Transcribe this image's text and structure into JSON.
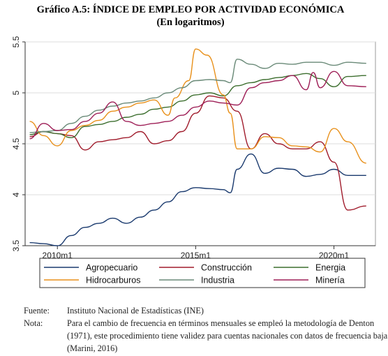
{
  "title": "Gráfico A.5: ÍNDICE DE EMPLEO POR ACTIVIDAD ECONÓMICA",
  "subtitle": "(En logaritmos)",
  "chart_data": {
    "type": "line",
    "ylim": [
      3.5,
      5.5
    ],
    "yticks": [
      "3.5",
      "4",
      "4.5",
      "5",
      "5.5"
    ],
    "xticks": [
      "2010m1",
      "2015m1",
      "2020m1"
    ],
    "grid": true,
    "legend_position": "bottom",
    "series": [
      {
        "name": "Agropecuario",
        "color": "#1a3a6e",
        "x": [
          "2009m1",
          "2009m7",
          "2010m1",
          "2010m7",
          "2011m1",
          "2011m7",
          "2012m1",
          "2012m7",
          "2013m1",
          "2013m7",
          "2014m1",
          "2014m7",
          "2015m1",
          "2015m7",
          "2016m1",
          "2016m4",
          "2016m7",
          "2017m1",
          "2017m7",
          "2018m1",
          "2018m7",
          "2019m1",
          "2019m7",
          "2020m1",
          "2020m7",
          "2021m3"
        ],
        "y": [
          3.53,
          3.52,
          3.5,
          3.6,
          3.68,
          3.72,
          3.77,
          3.72,
          3.78,
          3.85,
          3.93,
          4.03,
          4.07,
          4.06,
          4.05,
          4.02,
          4.25,
          4.4,
          4.21,
          4.26,
          4.25,
          4.18,
          4.2,
          4.25,
          4.19,
          4.19
        ]
      },
      {
        "name": "Construcción",
        "color": "#a01c2c",
        "x": [
          "2009m1",
          "2009m7",
          "2010m1",
          "2010m7",
          "2011m1",
          "2011m7",
          "2012m1",
          "2012m7",
          "2013m1",
          "2013m7",
          "2014m1",
          "2014m7",
          "2015m1",
          "2015m7",
          "2016m1",
          "2016m7",
          "2017m1",
          "2017m7",
          "2018m1",
          "2018m7",
          "2019m1",
          "2019m7",
          "2020m1",
          "2020m7",
          "2021m3"
        ],
        "y": [
          4.57,
          4.62,
          4.6,
          4.58,
          4.44,
          4.52,
          4.54,
          4.56,
          4.62,
          4.5,
          4.53,
          4.62,
          4.8,
          4.97,
          4.95,
          4.82,
          4.45,
          4.6,
          4.5,
          4.45,
          4.45,
          4.52,
          4.32,
          3.85,
          3.89
        ]
      },
      {
        "name": "Energia",
        "color": "#3c6e2e",
        "x": [
          "2009m1",
          "2009m7",
          "2010m1",
          "2010m7",
          "2011m1",
          "2011m7",
          "2012m1",
          "2012m7",
          "2013m1",
          "2013m7",
          "2014m1",
          "2014m7",
          "2015m1",
          "2015m7",
          "2016m1",
          "2016m7",
          "2017m1",
          "2017m7",
          "2018m1",
          "2018m7",
          "2019m1",
          "2019m7",
          "2020m1",
          "2020m7",
          "2021m3"
        ],
        "y": [
          4.59,
          4.62,
          4.6,
          4.56,
          4.67,
          4.69,
          4.72,
          4.76,
          4.79,
          4.84,
          4.86,
          4.92,
          4.98,
          5.0,
          4.97,
          5.07,
          5.1,
          5.13,
          5.15,
          5.17,
          5.19,
          5.14,
          5.06,
          5.16,
          5.17
        ]
      },
      {
        "name": "Hidrocarburos",
        "color": "#e8901a",
        "x": [
          "2009m1",
          "2009m7",
          "2010m1",
          "2010m7",
          "2011m1",
          "2011m7",
          "2012m1",
          "2012m7",
          "2013m1",
          "2013m7",
          "2014m1",
          "2014m4",
          "2014m10",
          "2015m1",
          "2015m6",
          "2016m1",
          "2016m4",
          "2016m7",
          "2017m1",
          "2017m7",
          "2018m1",
          "2018m7",
          "2019m1",
          "2019m7",
          "2020m1",
          "2020m7",
          "2021m3"
        ],
        "y": [
          4.72,
          4.58,
          4.48,
          4.63,
          4.68,
          4.73,
          4.82,
          4.86,
          4.9,
          4.93,
          4.78,
          4.95,
          5.12,
          5.43,
          5.37,
          4.98,
          4.8,
          4.45,
          4.45,
          4.57,
          4.56,
          4.48,
          4.47,
          4.42,
          4.65,
          4.52,
          4.31
        ]
      },
      {
        "name": "Industria",
        "color": "#6a8a78",
        "x": [
          "2009m1",
          "2009m7",
          "2010m1",
          "2010m7",
          "2011m1",
          "2011m7",
          "2012m1",
          "2012m7",
          "2013m1",
          "2013m7",
          "2014m1",
          "2014m7",
          "2015m1",
          "2015m7",
          "2016m1",
          "2016m4",
          "2016m7",
          "2017m1",
          "2017m7",
          "2018m1",
          "2018m7",
          "2019m1",
          "2019m7",
          "2020m1",
          "2020m7",
          "2021m3"
        ],
        "y": [
          4.61,
          4.62,
          4.63,
          4.7,
          4.77,
          4.83,
          4.87,
          4.9,
          4.92,
          4.95,
          5.0,
          5.05,
          5.12,
          5.13,
          5.12,
          5.1,
          5.33,
          5.28,
          5.24,
          5.29,
          5.28,
          5.3,
          5.3,
          5.27,
          5.3,
          5.29
        ]
      },
      {
        "name": "Minería",
        "color": "#9e1f57",
        "x": [
          "2009m1",
          "2009m7",
          "2010m1",
          "2010m7",
          "2011m1",
          "2011m7",
          "2012m1",
          "2012m7",
          "2013m1",
          "2013m7",
          "2014m1",
          "2014m7",
          "2015m1",
          "2015m7",
          "2016m1",
          "2016m7",
          "2017m1",
          "2017m7",
          "2018m1",
          "2018m7",
          "2019m1",
          "2019m4",
          "2019m7",
          "2020m1",
          "2020m7",
          "2021m3"
        ],
        "y": [
          4.55,
          4.7,
          4.63,
          4.64,
          4.72,
          4.8,
          4.91,
          4.72,
          4.68,
          4.7,
          4.72,
          4.78,
          4.86,
          4.92,
          4.9,
          4.88,
          5.05,
          5.1,
          5.12,
          5.17,
          5.03,
          5.2,
          5.05,
          5.21,
          5.07,
          5.06
        ]
      }
    ]
  },
  "notes": {
    "fuente_label": "Fuente:",
    "fuente_text": "Instituto Nacional de Estadísticas (INE)",
    "nota_label": "Nota:",
    "nota_text": "Para el cambio de frecuencia en términos mensuales se empleó la metodología de Denton (1971), este procedimiento tiene validez para cuentas nacionales con datos de frecuencia baja (Marini, 2016)"
  }
}
